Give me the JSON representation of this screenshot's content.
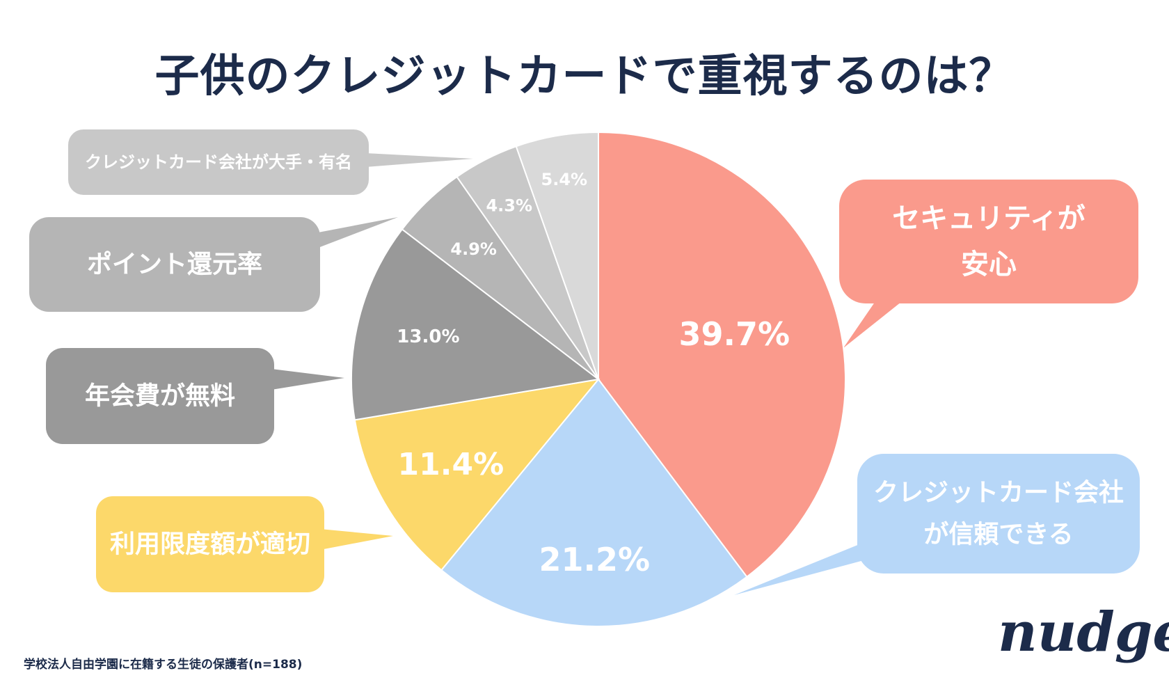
{
  "chart_data": {
    "type": "pie",
    "title": "子供のクレジットカードで重視するのは？",
    "source_note": "学校法人自由学園に在籍する生徒の保護者(n=188)",
    "logo_text": "nudge",
    "start_angle": "12 o'clock",
    "direction": "clockwise",
    "slices": [
      {
        "label": "セキュリティが安心",
        "label_lines": [
          "セキュリティが",
          "安心"
        ],
        "value": 39.7,
        "value_label": "39.7%",
        "color": "#fa9a8c",
        "callout_color": "#fa9a8c",
        "text_color": "#ffffff"
      },
      {
        "label": "クレジットカード会社が信頼できる",
        "label_lines": [
          "クレジットカード会社",
          "が信頼できる"
        ],
        "value": 21.2,
        "value_label": "21.2%",
        "color": "#b7d7f8",
        "callout_color": "#b7d7f8",
        "text_color": "#ffffff"
      },
      {
        "label": "利用限度額が適切",
        "label_lines": [
          "利用限度額が適切"
        ],
        "value": 11.4,
        "value_label": "11.4%",
        "color": "#fcd86a",
        "callout_color": "#fcd86a",
        "text_color": "#ffffff"
      },
      {
        "label": "年会費が無料",
        "label_lines": [
          "年会費が無料"
        ],
        "value": 13.0,
        "value_label": "13.0%",
        "color": "#999999",
        "callout_color": "#999999",
        "text_color": "#ffffff"
      },
      {
        "label": "ポイント還元率",
        "label_lines": [
          "ポイント還元率"
        ],
        "value": 4.9,
        "value_label": "4.9%",
        "color": "#b5b5b5",
        "callout_color": "#b5b5b5",
        "text_color": "#ffffff"
      },
      {
        "label": "クレジットカード会社が大手・有名",
        "label_lines": [
          "クレジットカード会社が大手・有名"
        ],
        "value": 4.3,
        "value_label": "4.3%",
        "color": "#c8c8c8",
        "callout_color": "#c8c8c8",
        "text_color": "#ffffff"
      },
      {
        "label": "",
        "label_lines": [],
        "value": 5.4,
        "value_label": "5.4%",
        "color": "#d9d9d9",
        "callout_color": "",
        "text_color": "#ffffff"
      }
    ]
  }
}
